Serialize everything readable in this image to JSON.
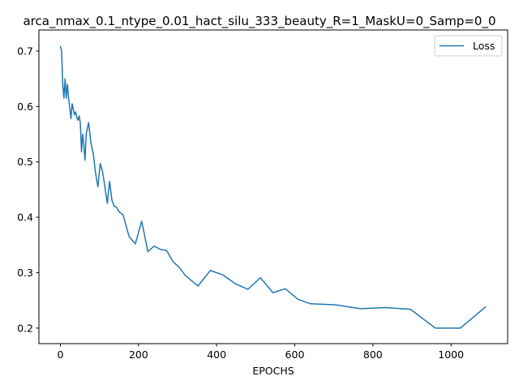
{
  "chart_data": {
    "type": "line",
    "title": "arca_nmax_0.1_ntype_0.01_hact_silu_333_beauty_R=1_MaskU=0_Samp=0_0",
    "xlabel": "EPOCHS",
    "ylabel": "",
    "xlim": [
      -55,
      1145
    ],
    "ylim": [
      0.172,
      0.738
    ],
    "xticks": [
      0,
      200,
      400,
      600,
      800,
      1000
    ],
    "yticks": [
      0.2,
      0.3,
      0.4,
      0.5,
      0.6,
      0.7
    ],
    "xtick_labels": [
      "0",
      "200",
      "400",
      "600",
      "800",
      "1000"
    ],
    "ytick_labels": [
      "0.2",
      "0.3",
      "0.4",
      "0.5",
      "0.6",
      "0.7"
    ],
    "grid": false,
    "legend": {
      "position": "upper-right",
      "entries": [
        "Loss"
      ]
    },
    "series": [
      {
        "name": "Loss",
        "color": "#1f77b4",
        "x": [
          0,
          3,
          6,
          9,
          12,
          15,
          18,
          21,
          24,
          27,
          30,
          33,
          36,
          39,
          42,
          45,
          48,
          51,
          54,
          57,
          60,
          63,
          66,
          72,
          78,
          84,
          90,
          96,
          102,
          108,
          114,
          120,
          126,
          132,
          138,
          144,
          150,
          160,
          176,
          192,
          208,
          224,
          240,
          256,
          272,
          288,
          304,
          320,
          352,
          384,
          416,
          448,
          480,
          512,
          544,
          576,
          608,
          640,
          704,
          768,
          832,
          896,
          960,
          1024,
          1088
        ],
        "y": [
          0.708,
          0.7,
          0.64,
          0.615,
          0.65,
          0.615,
          0.64,
          0.615,
          0.597,
          0.578,
          0.605,
          0.595,
          0.585,
          0.59,
          0.58,
          0.575,
          0.583,
          0.57,
          0.518,
          0.55,
          0.53,
          0.503,
          0.55,
          0.571,
          0.535,
          0.515,
          0.48,
          0.455,
          0.497,
          0.482,
          0.455,
          0.425,
          0.465,
          0.43,
          0.42,
          0.418,
          0.41,
          0.405,
          0.365,
          0.352,
          0.393,
          0.338,
          0.348,
          0.342,
          0.34,
          0.32,
          0.31,
          0.295,
          0.276,
          0.304,
          0.296,
          0.28,
          0.27,
          0.291,
          0.264,
          0.271,
          0.252,
          0.244,
          0.242,
          0.235,
          0.237,
          0.234,
          0.2,
          0.2,
          0.238
        ]
      }
    ]
  }
}
